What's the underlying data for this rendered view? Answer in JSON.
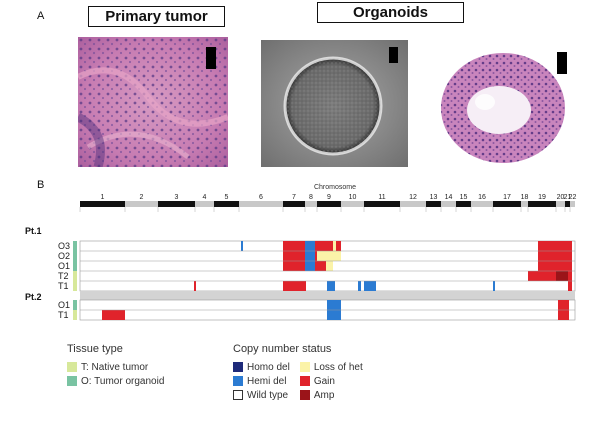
{
  "panel_a": {
    "label": "A",
    "title_primary": "Primary tumor",
    "title_organoids": "Organoids"
  },
  "panel_b": {
    "label": "B",
    "chromosome_title": "Chromosome",
    "chromosomes": [
      "1",
      "2",
      "3",
      "4",
      "5",
      "6",
      "7",
      "8",
      "9",
      "10",
      "11",
      "12",
      "13",
      "14",
      "15",
      "16",
      "17",
      "18",
      "19",
      "20",
      "21",
      "22"
    ],
    "patients": [
      {
        "name": "Pt.1",
        "rows": [
          "O3",
          "O2",
          "O1",
          "T2",
          "T1"
        ]
      },
      {
        "name": "Pt.2",
        "rows": [
          "O1",
          "T1"
        ]
      }
    ]
  },
  "legend": {
    "tissue_title": "Tissue type",
    "tissue": [
      {
        "label": "T: Native tumor",
        "color": "#d7e89a"
      },
      {
        "label": "O: Tumor organoid",
        "color": "#79c3a2"
      }
    ],
    "cn_title": "Copy number status",
    "cn_col1": [
      {
        "label": "Homo del",
        "color": "#1e2a7a"
      },
      {
        "label": "Hemi del",
        "color": "#2b7bd2"
      },
      {
        "label": "Wild type",
        "color": "#ffffff"
      }
    ],
    "cn_col2": [
      {
        "label": "Loss of het",
        "color": "#fbf3a8"
      },
      {
        "label": "Gain",
        "color": "#e0232b"
      },
      {
        "label": "Amp",
        "color": "#9b1419"
      }
    ]
  },
  "colors": {
    "gain": "#e0232b",
    "amp": "#9b1419",
    "hemi_del": "#2b7bd2",
    "homo_del": "#1e2a7a",
    "loh": "#fbf3a8",
    "separator": "#d3d3d3",
    "he_stain": "#b95aa8",
    "phase_contrast": "#8a8a8a"
  }
}
